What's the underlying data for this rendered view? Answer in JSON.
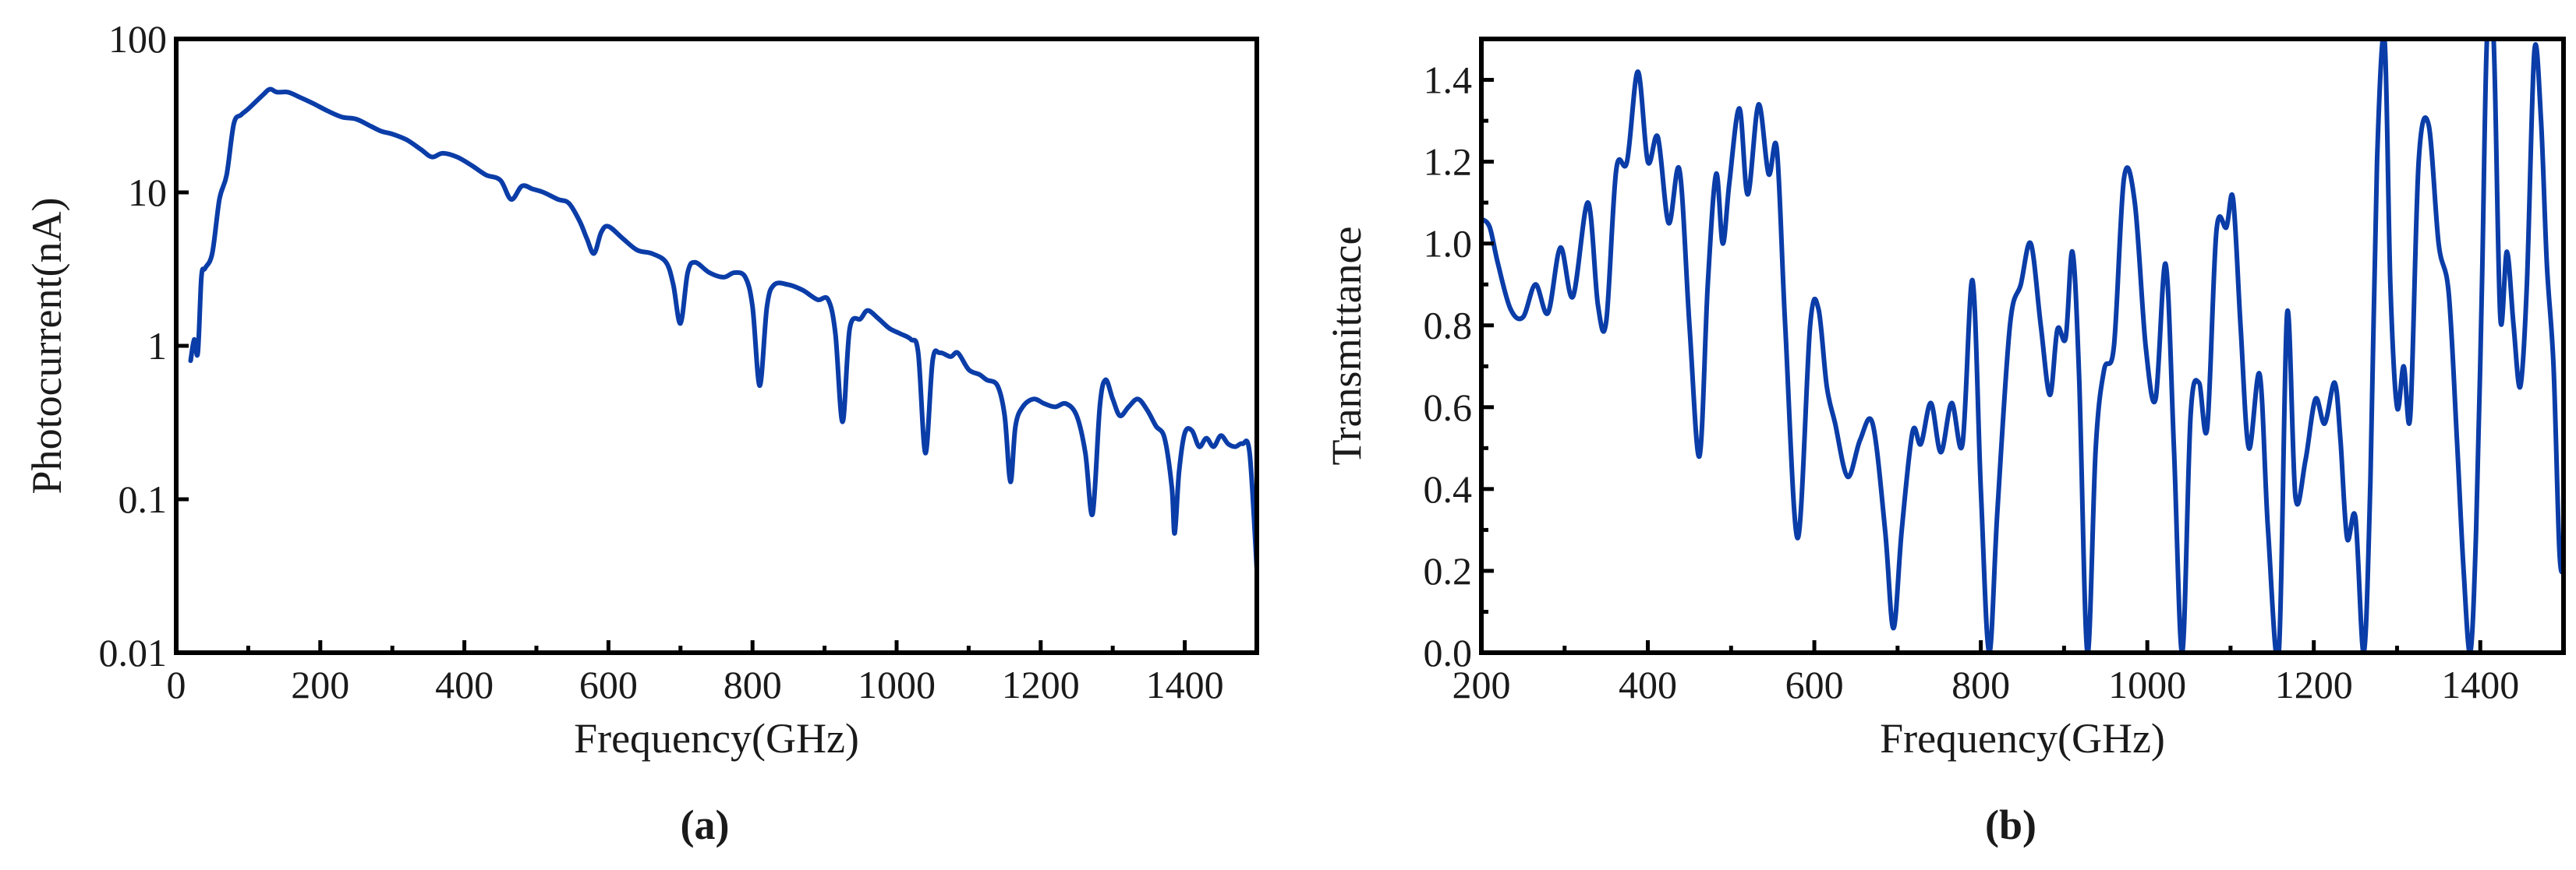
{
  "chart_data": [
    {
      "type": "line",
      "panel_label": "(a)",
      "xlabel": "Frequency(GHz)",
      "ylabel": "Photocurrent(nA)",
      "xlim": [
        0,
        1500
      ],
      "ylim": [
        0.01,
        100
      ],
      "yscale": "log",
      "grid": false,
      "xticks": [
        0,
        200,
        400,
        600,
        800,
        1000,
        1200,
        1400
      ],
      "xtick_labels": [
        "0",
        "200",
        "400",
        "600",
        "800",
        "1000",
        "1200",
        "1400"
      ],
      "yticks": [
        0.01,
        0.1,
        1,
        10,
        100
      ],
      "ytick_labels": [
        "0.01",
        "0.1",
        "1",
        "10",
        "100"
      ],
      "color": "#0b3da8",
      "series": [
        {
          "x": [
            20,
            25,
            30,
            35,
            40,
            50,
            60,
            70,
            80,
            90,
            100,
            120,
            130,
            140,
            155,
            170,
            190,
            210,
            230,
            250,
            270,
            285,
            300,
            320,
            340,
            355,
            370,
            390,
            410,
            430,
            450,
            465,
            480,
            495,
            510,
            530,
            545,
            560,
            570,
            580,
            590,
            600,
            620,
            640,
            660,
            680,
            690,
            700,
            710,
            720,
            740,
            760,
            775,
            790,
            800,
            810,
            820,
            830,
            850,
            870,
            890,
            905,
            915,
            925,
            935,
            950,
            960,
            975,
            990,
            1005,
            1020,
            1030,
            1040,
            1050,
            1060,
            1075,
            1085,
            1100,
            1115,
            1125,
            1140,
            1150,
            1158,
            1165,
            1175,
            1190,
            1205,
            1220,
            1235,
            1250,
            1262,
            1272,
            1282,
            1290,
            1300,
            1310,
            1322,
            1335,
            1348,
            1360,
            1372,
            1382,
            1386,
            1392,
            1400,
            1410,
            1420,
            1430,
            1440,
            1450,
            1460,
            1470,
            1480,
            1490,
            1500
          ],
          "y": [
            0.8,
            1.1,
            0.9,
            2.8,
            3.2,
            4.0,
            9.0,
            13,
            28,
            32,
            35,
            43,
            47,
            45,
            45,
            42,
            38,
            34,
            31,
            30,
            27,
            25,
            24,
            22,
            19,
            17,
            18,
            17,
            15,
            13,
            12,
            9,
            11,
            10.5,
            10,
            9,
            8.5,
            6.5,
            5.0,
            4.0,
            5.5,
            6.0,
            5.0,
            4.2,
            4.0,
            3.5,
            2.5,
            1.4,
            3.0,
            3.5,
            3.0,
            2.8,
            3.0,
            2.8,
            1.8,
            0.55,
            1.8,
            2.5,
            2.5,
            2.3,
            2.0,
            2.0,
            1.2,
            0.32,
            1.3,
            1.5,
            1.7,
            1.5,
            1.3,
            1.2,
            1.1,
            0.9,
            0.2,
            0.8,
            0.9,
            0.85,
            0.9,
            0.7,
            0.65,
            0.6,
            0.55,
            0.35,
            0.13,
            0.3,
            0.4,
            0.45,
            0.42,
            0.4,
            0.42,
            0.35,
            0.2,
            0.08,
            0.4,
            0.6,
            0.45,
            0.35,
            0.4,
            0.45,
            0.38,
            0.3,
            0.25,
            0.12,
            0.06,
            0.15,
            0.27,
            0.28,
            0.22,
            0.25,
            0.22,
            0.26,
            0.23,
            0.22,
            0.23,
            0.2,
            0.035
          ]
        }
      ]
    },
    {
      "type": "line",
      "panel_label": "(b)",
      "xlabel": "Frequency(GHz)",
      "ylabel": "Transmittance",
      "xlim": [
        200,
        1500
      ],
      "ylim": [
        0.0,
        1.5
      ],
      "yscale": "linear",
      "grid": false,
      "xticks": [
        200,
        400,
        600,
        800,
        1000,
        1200,
        1400
      ],
      "xtick_labels": [
        "200",
        "400",
        "600",
        "800",
        "1000",
        "1200",
        "1400"
      ],
      "yticks": [
        0.0,
        0.2,
        0.4,
        0.6,
        0.8,
        1.0,
        1.2,
        1.4
      ],
      "ytick_labels": [
        "0.0",
        "0.2",
        "0.4",
        "0.6",
        "0.8",
        "1.0",
        "1.2",
        "1.4"
      ],
      "color": "#0b3da8",
      "series": [
        {
          "x": [
            200,
            210,
            220,
            235,
            250,
            265,
            280,
            295,
            310,
            328,
            340,
            350,
            362,
            375,
            388,
            400,
            412,
            425,
            438,
            450,
            462,
            472,
            482,
            490,
            498,
            510,
            520,
            533,
            545,
            555,
            565,
            580,
            595,
            605,
            615,
            625,
            640,
            655,
            670,
            685,
            695,
            705,
            718,
            728,
            740,
            752,
            765,
            778,
            790,
            800,
            810,
            820,
            835,
            848,
            860,
            872,
            883,
            892,
            902,
            910,
            918,
            928,
            938,
            948,
            960,
            972,
            985,
            998,
            1010,
            1022,
            1032,
            1042,
            1052,
            1062,
            1072,
            1083,
            1095,
            1103,
            1112,
            1122,
            1135,
            1145,
            1158,
            1168,
            1178,
            1190,
            1202,
            1213,
            1225,
            1232,
            1240,
            1250,
            1260,
            1268,
            1276,
            1285,
            1292,
            1300,
            1308,
            1316,
            1326,
            1338,
            1350,
            1362,
            1372,
            1380,
            1388,
            1395,
            1402,
            1408,
            1416,
            1424,
            1432,
            1440,
            1448,
            1456,
            1465,
            1473,
            1480,
            1488,
            1495,
            1500
          ],
          "y": [
            1.06,
            1.04,
            0.95,
            0.84,
            0.82,
            0.9,
            0.83,
            0.99,
            0.87,
            1.1,
            0.85,
            0.81,
            1.18,
            1.2,
            1.42,
            1.2,
            1.26,
            1.05,
            1.18,
            0.8,
            0.48,
            0.9,
            1.17,
            1.0,
            1.15,
            1.33,
            1.12,
            1.34,
            1.17,
            1.23,
            0.8,
            0.28,
            0.8,
            0.84,
            0.65,
            0.56,
            0.43,
            0.52,
            0.56,
            0.3,
            0.06,
            0.3,
            0.54,
            0.51,
            0.61,
            0.49,
            0.61,
            0.51,
            0.91,
            0.4,
            0.0,
            0.35,
            0.8,
            0.9,
            1.0,
            0.8,
            0.63,
            0.79,
            0.77,
            0.98,
            0.68,
            0.0,
            0.5,
            0.69,
            0.75,
            1.16,
            1.1,
            0.75,
            0.62,
            0.95,
            0.5,
            0.0,
            0.58,
            0.66,
            0.55,
            1.03,
            1.04,
            1.11,
            0.8,
            0.5,
            0.68,
            0.3,
            0.0,
            0.83,
            0.38,
            0.47,
            0.62,
            0.56,
            0.66,
            0.52,
            0.28,
            0.33,
            0.0,
            0.42,
            1.2,
            1.5,
            0.9,
            0.6,
            0.7,
            0.58,
            1.2,
            1.29,
            1.0,
            0.88,
            0.52,
            0.2,
            0.0,
            0.3,
            0.9,
            1.5,
            1.5,
            0.82,
            0.98,
            0.8,
            0.65,
            0.9,
            1.47,
            1.3,
            0.95,
            0.7,
            0.25,
            0.2
          ]
        }
      ]
    }
  ]
}
